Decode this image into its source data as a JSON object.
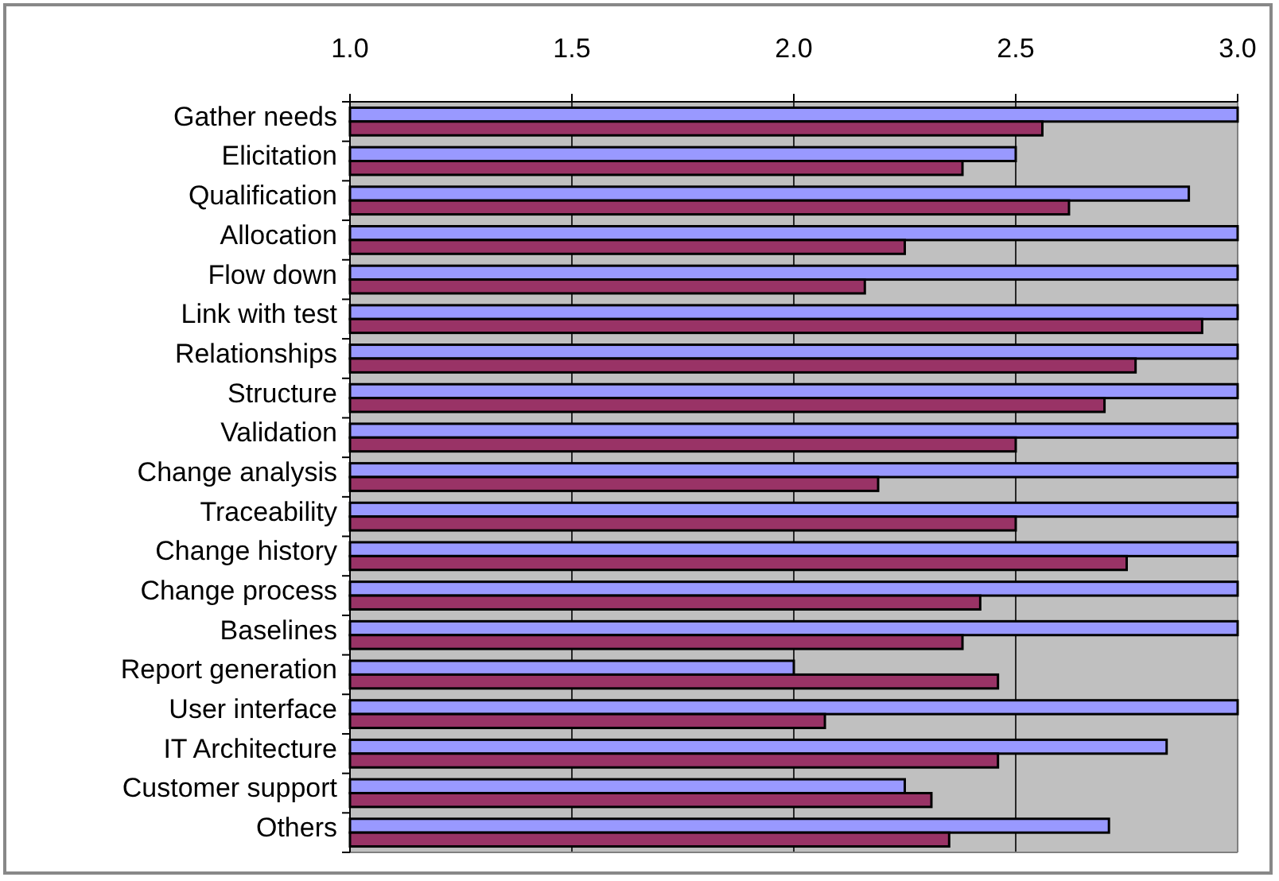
{
  "chart_data": {
    "type": "bar",
    "orientation": "horizontal",
    "categories": [
      "Gather needs",
      "Elicitation",
      "Qualification",
      "Allocation",
      "Flow down",
      "Link with test",
      "Relationships",
      "Structure",
      "Validation",
      "Change analysis",
      "Traceability",
      "Change history",
      "Change process",
      "Baselines",
      "Report generation",
      "User interface",
      "IT Architecture",
      "Customer support",
      "Others"
    ],
    "series": [
      {
        "color": "#9999ff",
        "values": [
          3.0,
          2.5,
          2.89,
          3.0,
          3.0,
          3.0,
          3.0,
          3.0,
          3.0,
          3.0,
          3.0,
          3.0,
          3.0,
          3.0,
          2.0,
          3.0,
          2.84,
          2.25,
          2.71
        ]
      },
      {
        "color": "#993366",
        "values": [
          2.56,
          2.38,
          2.62,
          2.25,
          2.16,
          2.92,
          2.77,
          2.7,
          2.5,
          2.19,
          2.5,
          2.75,
          2.42,
          2.38,
          2.46,
          2.07,
          2.46,
          2.31,
          2.35
        ]
      }
    ],
    "xlim": [
      1.0,
      3.0
    ],
    "xticks": [
      {
        "value": 1,
        "label": "1.0"
      },
      {
        "value": 1.5,
        "label": "1.5"
      },
      {
        "value": 2,
        "label": "2.0"
      },
      {
        "value": 2.5,
        "label": "2.5"
      },
      {
        "value": 3,
        "label": "3.0"
      }
    ],
    "grid": "x"
  }
}
